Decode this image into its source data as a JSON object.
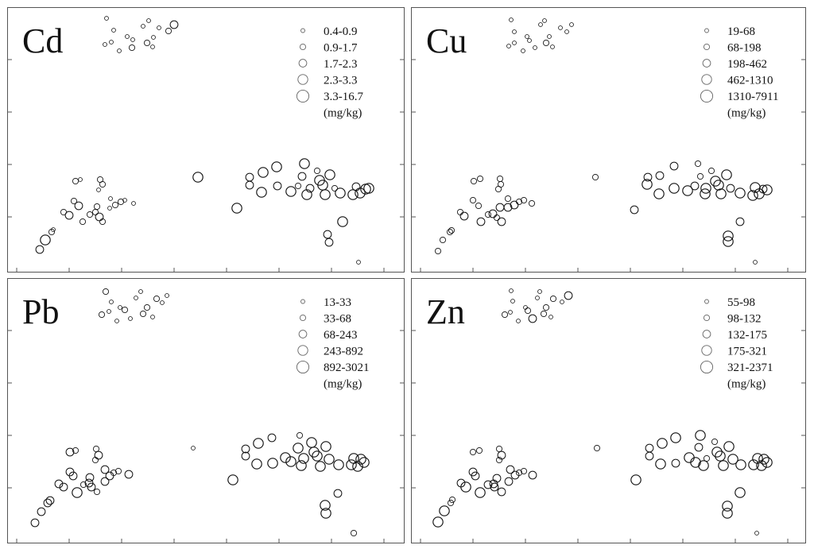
{
  "chart_data": [
    {
      "type": "scatter",
      "title": "Cd",
      "legend_placement": "top-right",
      "legend_unit": "(mg/kg)",
      "classes": [
        "0.4-0.9",
        "0.9-1.7",
        "1.7-2.3",
        "2.3-3.3",
        "3.3-16.7"
      ],
      "points": [
        [
          125,
          14,
          1
        ],
        [
          134,
          29,
          1
        ],
        [
          123,
          47,
          1
        ],
        [
          131,
          44,
          1
        ],
        [
          141,
          55,
          1
        ],
        [
          151,
          37,
          1
        ],
        [
          158,
          41,
          1
        ],
        [
          157,
          51,
          2
        ],
        [
          171,
          24,
          1
        ],
        [
          178,
          17,
          1
        ],
        [
          184,
          38,
          1
        ],
        [
          176,
          45,
          2
        ],
        [
          183,
          50,
          1
        ],
        [
          191,
          26,
          1
        ],
        [
          203,
          30,
          2
        ],
        [
          210,
          22,
          3
        ],
        [
          41,
          305,
          3
        ],
        [
          48,
          293,
          4
        ],
        [
          56,
          283,
          2
        ],
        [
          58,
          280,
          1
        ],
        [
          71,
          258,
          2
        ],
        [
          78,
          262,
          3
        ],
        [
          84,
          244,
          2
        ],
        [
          86,
          219,
          2
        ],
        [
          92,
          217,
          1
        ],
        [
          95,
          270,
          2
        ],
        [
          104,
          261,
          2
        ],
        [
          111,
          258,
          2
        ],
        [
          117,
          217,
          2
        ],
        [
          115,
          230,
          1
        ],
        [
          120,
          223,
          2
        ],
        [
          116,
          264,
          3
        ],
        [
          120,
          270,
          2
        ],
        [
          113,
          251,
          2
        ],
        [
          129,
          253,
          1
        ],
        [
          130,
          241,
          1
        ],
        [
          136,
          249,
          2
        ],
        [
          143,
          245,
          2
        ],
        [
          148,
          243,
          1
        ],
        [
          159,
          247,
          1
        ],
        [
          90,
          250,
          3
        ],
        [
          240,
          214,
          4
        ],
        [
          289,
          253,
          4
        ],
        [
          305,
          214,
          3
        ],
        [
          305,
          224,
          3
        ],
        [
          320,
          233,
          4
        ],
        [
          322,
          208,
          4
        ],
        [
          339,
          201,
          4
        ],
        [
          340,
          225,
          3
        ],
        [
          357,
          232,
          4
        ],
        [
          366,
          225,
          2
        ],
        [
          374,
          197,
          4
        ],
        [
          371,
          213,
          3
        ],
        [
          381,
          228,
          3
        ],
        [
          377,
          236,
          4
        ],
        [
          390,
          206,
          2
        ],
        [
          393,
          218,
          4
        ],
        [
          397,
          224,
          4
        ],
        [
          400,
          236,
          4
        ],
        [
          406,
          211,
          4
        ],
        [
          412,
          228,
          2
        ],
        [
          419,
          234,
          4
        ],
        [
          435,
          236,
          4
        ],
        [
          439,
          226,
          3
        ],
        [
          444,
          234,
          4
        ],
        [
          451,
          229,
          4
        ],
        [
          455,
          228,
          4
        ],
        [
          403,
          286,
          3
        ],
        [
          405,
          296,
          3
        ],
        [
          422,
          270,
          4
        ],
        [
          442,
          321,
          1
        ]
      ]
    },
    {
      "type": "scatter",
      "title": "Cu",
      "legend_placement": "top-right",
      "legend_unit": "(mg/kg)",
      "classes": [
        "19-68",
        "68-198",
        "198-462",
        "462-1310",
        "1310-7911"
      ],
      "points": [
        [
          126,
          16,
          1
        ],
        [
          130,
          31,
          1
        ],
        [
          123,
          49,
          1
        ],
        [
          130,
          45,
          1
        ],
        [
          141,
          55,
          1
        ],
        [
          146,
          37,
          1
        ],
        [
          149,
          42,
          1
        ],
        [
          156,
          51,
          1
        ],
        [
          163,
          22,
          1
        ],
        [
          168,
          17,
          1
        ],
        [
          174,
          37,
          1
        ],
        [
          170,
          45,
          2
        ],
        [
          178,
          50,
          1
        ],
        [
          188,
          26,
          1
        ],
        [
          196,
          31,
          1
        ],
        [
          202,
          22,
          1
        ],
        [
          34,
          307,
          2
        ],
        [
          40,
          293,
          2
        ],
        [
          49,
          283,
          2
        ],
        [
          51,
          281,
          2
        ],
        [
          62,
          258,
          2
        ],
        [
          67,
          263,
          3
        ],
        [
          78,
          243,
          2
        ],
        [
          79,
          219,
          2
        ],
        [
          87,
          216,
          2
        ],
        [
          88,
          270,
          3
        ],
        [
          97,
          261,
          2
        ],
        [
          103,
          260,
          3
        ],
        [
          112,
          216,
          2
        ],
        [
          110,
          229,
          2
        ],
        [
          113,
          223,
          2
        ],
        [
          108,
          265,
          2
        ],
        [
          114,
          270,
          3
        ],
        [
          112,
          252,
          3
        ],
        [
          122,
          252,
          3
        ],
        [
          122,
          241,
          2
        ],
        [
          130,
          249,
          3
        ],
        [
          136,
          245,
          2
        ],
        [
          142,
          243,
          2
        ],
        [
          152,
          247,
          2
        ],
        [
          85,
          250,
          2
        ],
        [
          232,
          214,
          2
        ],
        [
          281,
          255,
          3
        ],
        [
          297,
          223,
          4
        ],
        [
          298,
          214,
          3
        ],
        [
          312,
          235,
          4
        ],
        [
          313,
          212,
          3
        ],
        [
          331,
          200,
          3
        ],
        [
          331,
          228,
          4
        ],
        [
          348,
          231,
          4
        ],
        [
          357,
          225,
          3
        ],
        [
          361,
          197,
          2
        ],
        [
          364,
          213,
          2
        ],
        [
          371,
          228,
          4
        ],
        [
          370,
          235,
          4
        ],
        [
          378,
          206,
          2
        ],
        [
          383,
          219,
          4
        ],
        [
          387,
          224,
          4
        ],
        [
          390,
          235,
          4
        ],
        [
          397,
          211,
          4
        ],
        [
          402,
          228,
          3
        ],
        [
          414,
          234,
          4
        ],
        [
          430,
          237,
          4
        ],
        [
          433,
          227,
          4
        ],
        [
          438,
          235,
          4
        ],
        [
          443,
          229,
          3
        ],
        [
          448,
          230,
          4
        ],
        [
          399,
          288,
          4
        ],
        [
          399,
          295,
          4
        ],
        [
          414,
          270,
          3
        ],
        [
          433,
          321,
          1
        ]
      ]
    },
    {
      "type": "scatter",
      "title": "Pb",
      "legend_placement": "top-right",
      "legend_unit": "(mg/kg)",
      "classes": [
        "13-33",
        "33-68",
        "68-243",
        "243-892",
        "892-3021"
      ],
      "points": [
        [
          124,
          17,
          2
        ],
        [
          131,
          30,
          1
        ],
        [
          119,
          46,
          2
        ],
        [
          128,
          42,
          1
        ],
        [
          138,
          54,
          1
        ],
        [
          142,
          37,
          1
        ],
        [
          148,
          40,
          2
        ],
        [
          155,
          51,
          1
        ],
        [
          162,
          25,
          1
        ],
        [
          168,
          17,
          1
        ],
        [
          176,
          37,
          2
        ],
        [
          171,
          45,
          2
        ],
        [
          183,
          49,
          1
        ],
        [
          188,
          26,
          2
        ],
        [
          195,
          31,
          1
        ],
        [
          201,
          22,
          1
        ],
        [
          35,
          308,
          3
        ],
        [
          43,
          294,
          3
        ],
        [
          51,
          283,
          3
        ],
        [
          54,
          280,
          3
        ],
        [
          65,
          259,
          3
        ],
        [
          71,
          263,
          3
        ],
        [
          79,
          244,
          3
        ],
        [
          79,
          219,
          3
        ],
        [
          86,
          217,
          2
        ],
        [
          88,
          270,
          4
        ],
        [
          96,
          260,
          2
        ],
        [
          103,
          258,
          3
        ],
        [
          112,
          215,
          2
        ],
        [
          111,
          229,
          2
        ],
        [
          115,
          223,
          3
        ],
        [
          106,
          263,
          3
        ],
        [
          113,
          269,
          2
        ],
        [
          104,
          251,
          3
        ],
        [
          123,
          256,
          3
        ],
        [
          123,
          241,
          3
        ],
        [
          129,
          249,
          3
        ],
        [
          134,
          245,
          2
        ],
        [
          140,
          243,
          2
        ],
        [
          153,
          247,
          3
        ],
        [
          83,
          249,
          3
        ],
        [
          234,
          214,
          1
        ],
        [
          284,
          254,
          4
        ],
        [
          300,
          215,
          3
        ],
        [
          300,
          224,
          3
        ],
        [
          314,
          234,
          4
        ],
        [
          316,
          208,
          4
        ],
        [
          333,
          201,
          3
        ],
        [
          334,
          233,
          4
        ],
        [
          350,
          226,
          4
        ],
        [
          357,
          231,
          4
        ],
        [
          368,
          198,
          2
        ],
        [
          366,
          214,
          4
        ],
        [
          373,
          227,
          4
        ],
        [
          370,
          236,
          4
        ],
        [
          383,
          207,
          4
        ],
        [
          386,
          219,
          4
        ],
        [
          390,
          224,
          4
        ],
        [
          394,
          237,
          4
        ],
        [
          401,
          212,
          4
        ],
        [
          405,
          228,
          4
        ],
        [
          417,
          235,
          4
        ],
        [
          433,
          235,
          4
        ],
        [
          436,
          227,
          4
        ],
        [
          441,
          237,
          4
        ],
        [
          445,
          228,
          4
        ],
        [
          449,
          232,
          4
        ],
        [
          400,
          286,
          4
        ],
        [
          401,
          296,
          4
        ],
        [
          416,
          271,
          3
        ],
        [
          436,
          321,
          2
        ]
      ]
    },
    {
      "type": "scatter",
      "title": "Zn",
      "legend_placement": "top-right",
      "legend_unit": "(mg/kg)",
      "classes": [
        "55-98",
        "98-132",
        "132-175",
        "175-321",
        "321-2371"
      ],
      "points": [
        [
          126,
          16,
          1
        ],
        [
          128,
          29,
          1
        ],
        [
          118,
          46,
          2
        ],
        [
          125,
          43,
          1
        ],
        [
          135,
          54,
          1
        ],
        [
          144,
          37,
          1
        ],
        [
          147,
          41,
          2
        ],
        [
          153,
          51,
          3
        ],
        [
          159,
          25,
          1
        ],
        [
          162,
          17,
          1
        ],
        [
          170,
          37,
          2
        ],
        [
          167,
          45,
          2
        ],
        [
          176,
          49,
          1
        ],
        [
          179,
          26,
          2
        ],
        [
          190,
          30,
          1
        ],
        [
          198,
          22,
          3
        ],
        [
          34,
          307,
          4
        ],
        [
          42,
          293,
          4
        ],
        [
          50,
          283,
          2
        ],
        [
          52,
          279,
          2
        ],
        [
          63,
          258,
          3
        ],
        [
          69,
          263,
          4
        ],
        [
          78,
          244,
          3
        ],
        [
          78,
          219,
          2
        ],
        [
          86,
          217,
          2
        ],
        [
          87,
          270,
          4
        ],
        [
          97,
          260,
          3
        ],
        [
          104,
          259,
          3
        ],
        [
          111,
          215,
          2
        ],
        [
          111,
          229,
          2
        ],
        [
          114,
          223,
          3
        ],
        [
          105,
          263,
          3
        ],
        [
          114,
          269,
          3
        ],
        [
          108,
          252,
          3
        ],
        [
          123,
          256,
          3
        ],
        [
          125,
          241,
          3
        ],
        [
          131,
          248,
          3
        ],
        [
          136,
          245,
          2
        ],
        [
          142,
          243,
          2
        ],
        [
          153,
          248,
          3
        ],
        [
          81,
          249,
          3
        ],
        [
          234,
          214,
          2
        ],
        [
          283,
          254,
          4
        ],
        [
          300,
          214,
          3
        ],
        [
          300,
          224,
          3
        ],
        [
          314,
          234,
          4
        ],
        [
          316,
          208,
          4
        ],
        [
          333,
          201,
          4
        ],
        [
          333,
          233,
          3
        ],
        [
          350,
          226,
          4
        ],
        [
          358,
          232,
          4
        ],
        [
          364,
          198,
          4
        ],
        [
          362,
          213,
          3
        ],
        [
          372,
          227,
          2
        ],
        [
          368,
          236,
          4
        ],
        [
          382,
          206,
          2
        ],
        [
          385,
          219,
          4
        ],
        [
          389,
          224,
          4
        ],
        [
          393,
          236,
          4
        ],
        [
          400,
          212,
          4
        ],
        [
          405,
          228,
          4
        ],
        [
          415,
          235,
          4
        ],
        [
          431,
          235,
          4
        ],
        [
          436,
          227,
          4
        ],
        [
          441,
          236,
          4
        ],
        [
          444,
          228,
          4
        ],
        [
          448,
          232,
          4
        ],
        [
          398,
          287,
          4
        ],
        [
          398,
          296,
          4
        ],
        [
          414,
          270,
          4
        ],
        [
          435,
          321,
          1
        ]
      ]
    }
  ]
}
